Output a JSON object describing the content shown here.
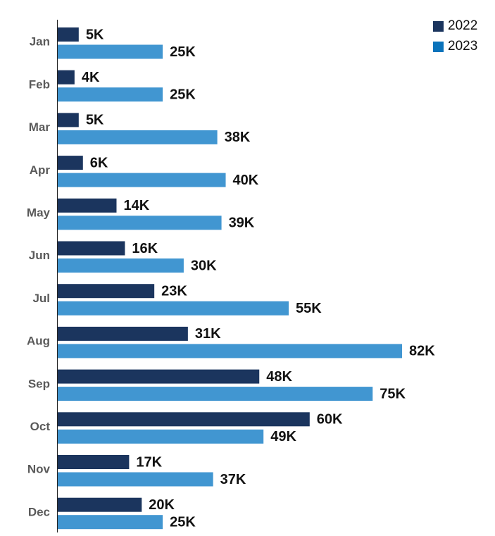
{
  "chart_data": {
    "type": "bar",
    "orientation": "horizontal",
    "categories": [
      "Jan",
      "Feb",
      "Mar",
      "Apr",
      "May",
      "Jun",
      "Jul",
      "Aug",
      "Sep",
      "Oct",
      "Nov",
      "Dec"
    ],
    "series": [
      {
        "name": "2022",
        "color": "#1b355e",
        "values": [
          5,
          4,
          5,
          6,
          14,
          16,
          23,
          31,
          48,
          60,
          17,
          20
        ],
        "labels": [
          "5K",
          "4K",
          "5K",
          "6K",
          "14K",
          "16K",
          "23K",
          "31K",
          "48K",
          "60K",
          "17K",
          "20K"
        ]
      },
      {
        "name": "2023",
        "color": "#4196d1",
        "values": [
          25,
          25,
          38,
          40,
          39,
          30,
          55,
          82,
          75,
          49,
          37,
          25
        ],
        "labels": [
          "25K",
          "25K",
          "38K",
          "40K",
          "39K",
          "30K",
          "55K",
          "82K",
          "75K",
          "49K",
          "37K",
          "25K"
        ]
      }
    ],
    "title": "",
    "xlabel": "",
    "ylabel": "",
    "xlim": [
      0,
      82
    ],
    "grid": false,
    "legend_position": "top-right"
  },
  "legend": {
    "items": [
      {
        "label": "2022",
        "color": "#1b355e"
      },
      {
        "label": "2023",
        "color": "#0a73bb"
      }
    ]
  }
}
